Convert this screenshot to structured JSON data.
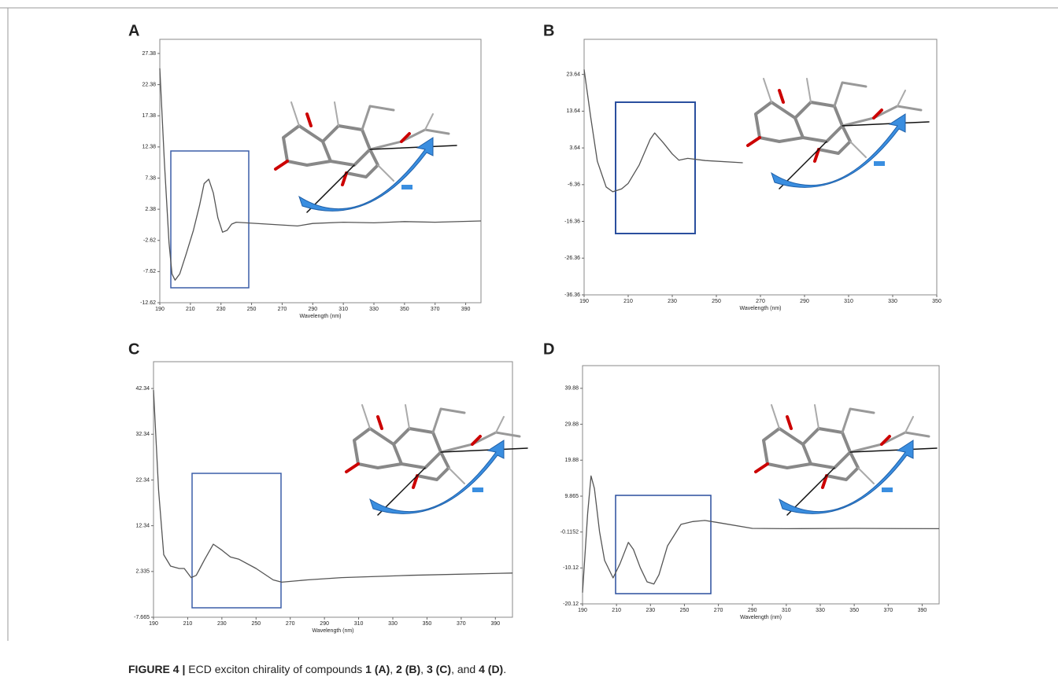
{
  "caption": [
    "FIGURE 4 |",
    " ECD exciton chirality of compounds ",
    "1 (A)",
    ", ",
    "2 (B)",
    ", ",
    "3 (C)",
    ", and ",
    "4 (D)",
    "."
  ],
  "chart_data": [
    {
      "type": "line",
      "panel": "A",
      "x_label": "Wavelength (nm)",
      "color": "#555555",
      "x": [
        190,
        193,
        196,
        198,
        200,
        203,
        207,
        212,
        216,
        219,
        222,
        225,
        228,
        231,
        234,
        237,
        240,
        260,
        280,
        290,
        310,
        330,
        350,
        370,
        400
      ],
      "values": [
        25,
        10,
        -3,
        -8,
        -9,
        -8,
        -5,
        -1,
        3,
        6.5,
        7.2,
        5,
        1,
        -1.3,
        -1,
        0,
        0.3,
        0,
        -0.3,
        0.1,
        0.3,
        0.2,
        0.4,
        0.3,
        0.5
      ],
      "xlim": [
        190,
        400
      ],
      "xticks": [
        190,
        210,
        230,
        250,
        270,
        290,
        310,
        330,
        350,
        370,
        390
      ],
      "ylim": [
        -12.62,
        29.65
      ],
      "yticks": [
        27.38,
        22.38,
        17.38,
        12.38,
        7.38,
        2.38,
        -2.62,
        -7.62,
        -12.62
      ]
    },
    {
      "type": "line",
      "panel": "B",
      "x_label": "Wavelength (nm)",
      "color": "#555555",
      "x": [
        190,
        193,
        196,
        200,
        203,
        207,
        210,
        215,
        220,
        222,
        226,
        230,
        233,
        237,
        245,
        262
      ],
      "values": [
        25,
        12,
        0,
        -7,
        -8.3,
        -7.5,
        -6,
        -1,
        6,
        7.7,
        5,
        2,
        0.3,
        0.8,
        0.2,
        -0.4
      ],
      "xlim": [
        190,
        350
      ],
      "xticks": [
        190,
        210,
        230,
        250,
        270,
        290,
        310,
        330,
        350
      ],
      "ylim": [
        -36.36,
        33.2
      ],
      "yticks": [
        23.64,
        13.64,
        3.64,
        -6.36,
        -16.36,
        -26.36,
        -36.36
      ]
    },
    {
      "type": "line",
      "panel": "C",
      "x_label": "Wavelength (nm)",
      "color": "#555555",
      "x": [
        190,
        193,
        196,
        200,
        205,
        208,
        212,
        215,
        220,
        225,
        230,
        235,
        240,
        250,
        260,
        265,
        280,
        300,
        340,
        400
      ],
      "values": [
        42,
        20,
        6,
        3.5,
        3,
        3,
        1,
        1.5,
        5,
        8.3,
        7,
        5.5,
        5,
        3,
        0.5,
        0,
        0.5,
        1,
        1.5,
        2
      ],
      "xlim": [
        190,
        400
      ],
      "xticks": [
        190,
        210,
        230,
        250,
        270,
        290,
        310,
        330,
        350,
        370,
        390
      ],
      "ylim": [
        -7.665,
        48.2
      ],
      "yticks": [
        42.34,
        32.34,
        22.34,
        12.34,
        2.335,
        -7.665
      ]
    },
    {
      "type": "line",
      "panel": "D",
      "x_label": "Wavelength (nm)",
      "color": "#555555",
      "x": [
        190,
        193,
        195,
        197,
        200,
        203,
        208,
        212,
        217,
        220,
        224,
        228,
        232,
        235,
        240,
        248,
        255,
        262,
        270,
        290,
        310,
        350,
        400
      ],
      "values": [
        -17,
        5,
        15.5,
        12,
        0,
        -8,
        -12.9,
        -9,
        -3,
        -5,
        -10,
        -14,
        -14.6,
        -12,
        -4,
        2,
        2.8,
        3.1,
        2.5,
        0.9,
        0.8,
        0.9,
        0.8
      ],
      "xlim": [
        190,
        400
      ],
      "xticks": [
        190,
        210,
        230,
        250,
        270,
        290,
        310,
        330,
        350,
        370,
        390
      ],
      "ylim": [
        -20.12,
        46.2
      ],
      "yticks": [
        39.88,
        29.88,
        19.88,
        9.865,
        -0.1152,
        -10.12,
        -20.12
      ]
    }
  ]
}
